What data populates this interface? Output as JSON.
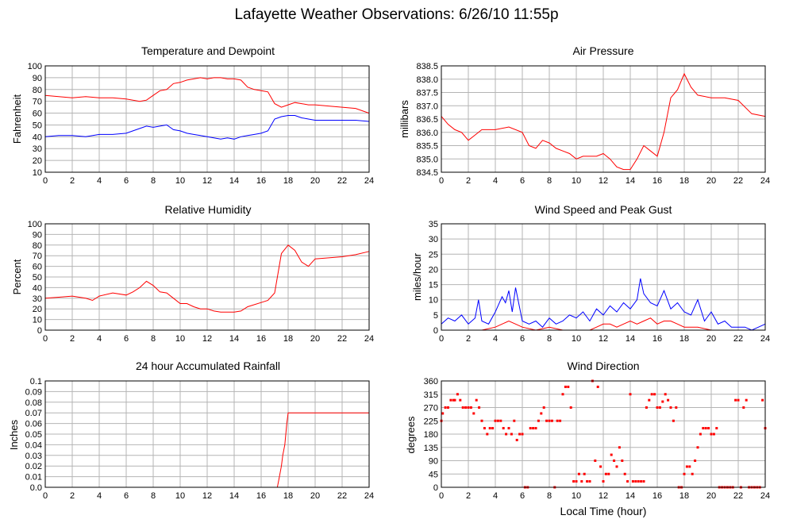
{
  "page_title": "Lafayette Weather Observations: 6/26/10 11:55p",
  "xaxis_label": "Local Time (hour)",
  "chart_data": [
    {
      "id": "temp",
      "type": "line",
      "title": "Temperature and Dewpoint",
      "ylabel": "Fahrenheit",
      "xlabel": "",
      "xlim": [
        0,
        24
      ],
      "ylim": [
        10,
        100
      ],
      "xticks": [
        "0",
        "2",
        "4",
        "6",
        "8",
        "10",
        "12",
        "14",
        "16",
        "18",
        "20",
        "22",
        "24"
      ],
      "yticks": [
        "10",
        "20",
        "30",
        "40",
        "50",
        "60",
        "70",
        "80",
        "90",
        "100"
      ],
      "grid": true,
      "series": [
        {
          "color": "#ff0000",
          "x": [
            0,
            1,
            2,
            3,
            4,
            5,
            6,
            7,
            7.5,
            8,
            8.5,
            9,
            9.5,
            10,
            10.5,
            11,
            11.5,
            12,
            12.5,
            13,
            13.5,
            14,
            14.5,
            15,
            15.5,
            16,
            16.5,
            17,
            17.5,
            18,
            18.5,
            19,
            19.5,
            20,
            21,
            22,
            23,
            24
          ],
          "y": [
            75,
            74,
            73,
            74,
            73,
            73,
            72,
            70,
            71,
            75,
            79,
            80,
            85,
            86,
            88,
            89,
            90,
            89,
            90,
            90,
            89,
            89,
            88,
            82,
            80,
            79,
            78,
            68,
            65,
            67,
            69,
            68,
            67,
            67,
            66,
            65,
            64,
            60
          ]
        },
        {
          "color": "#0000ff",
          "x": [
            0,
            1,
            2,
            3,
            4,
            5,
            6,
            7,
            7.5,
            8,
            8.5,
            9,
            9.5,
            10,
            10.5,
            11,
            11.5,
            12,
            12.5,
            13,
            13.5,
            14,
            14.5,
            15,
            15.5,
            16,
            16.5,
            17,
            17.5,
            18,
            18.5,
            19,
            19.5,
            20,
            21,
            22,
            23,
            24
          ],
          "y": [
            40,
            41,
            41,
            40,
            42,
            42,
            43,
            47,
            49,
            48,
            49,
            50,
            46,
            45,
            43,
            42,
            41,
            40,
            39,
            38,
            39,
            38,
            40,
            41,
            42,
            43,
            45,
            55,
            57,
            58,
            58,
            56,
            55,
            54,
            54,
            54,
            54,
            53
          ]
        }
      ]
    },
    {
      "id": "pressure",
      "type": "line",
      "title": "Air Pressure",
      "ylabel": "millibars",
      "xlabel": "",
      "xlim": [
        0,
        24
      ],
      "ylim": [
        834.5,
        838.5
      ],
      "xticks": [
        "0",
        "2",
        "4",
        "6",
        "8",
        "10",
        "12",
        "14",
        "16",
        "18",
        "20",
        "22",
        "24"
      ],
      "yticks": [
        "834.5",
        "835.0",
        "835.5",
        "836.0",
        "836.5",
        "837.0",
        "837.5",
        "838.0",
        "838.5"
      ],
      "grid": true,
      "series": [
        {
          "color": "#ff0000",
          "x": [
            0,
            0.5,
            1,
            1.5,
            2,
            2.5,
            3,
            4,
            5,
            6,
            6.5,
            7,
            7.5,
            8,
            8.5,
            9,
            9.5,
            10,
            10.5,
            11,
            11.5,
            12,
            12.5,
            13,
            13.5,
            14,
            14.5,
            15,
            15.5,
            16,
            16.5,
            17,
            17.5,
            18,
            18.5,
            19,
            20,
            21,
            22,
            23,
            24
          ],
          "y": [
            836.6,
            836.3,
            836.1,
            836.0,
            835.7,
            835.9,
            836.1,
            836.1,
            836.2,
            836.0,
            835.5,
            835.4,
            835.7,
            835.6,
            835.4,
            835.3,
            835.2,
            835.0,
            835.1,
            835.1,
            835.1,
            835.2,
            835.0,
            834.7,
            834.6,
            834.6,
            835.0,
            835.5,
            835.3,
            835.1,
            836.0,
            837.3,
            837.6,
            838.2,
            837.7,
            837.4,
            837.3,
            837.3,
            837.2,
            836.7,
            836.6
          ]
        }
      ]
    },
    {
      "id": "humidity",
      "type": "line",
      "title": "Relative Humidity",
      "ylabel": "Percent",
      "xlabel": "",
      "xlim": [
        0,
        24
      ],
      "ylim": [
        0,
        100
      ],
      "xticks": [
        "0",
        "2",
        "4",
        "6",
        "8",
        "10",
        "12",
        "14",
        "16",
        "18",
        "20",
        "22",
        "24"
      ],
      "yticks": [
        "0",
        "10",
        "20",
        "30",
        "40",
        "50",
        "60",
        "70",
        "80",
        "90",
        "100"
      ],
      "grid": true,
      "series": [
        {
          "color": "#ff0000",
          "x": [
            0,
            1,
            2,
            3,
            3.5,
            4,
            5,
            6,
            6.5,
            7,
            7.5,
            8,
            8.5,
            9,
            9.5,
            10,
            10.5,
            11,
            11.5,
            12,
            12.5,
            13,
            13.5,
            14,
            14.5,
            15,
            16,
            16.5,
            17,
            17.5,
            18,
            18.5,
            19,
            19.5,
            20,
            21,
            22,
            23,
            24
          ],
          "y": [
            30,
            31,
            32,
            30,
            28,
            32,
            35,
            33,
            36,
            40,
            46,
            42,
            36,
            35,
            30,
            25,
            25,
            22,
            20,
            20,
            18,
            17,
            17,
            17,
            18,
            22,
            26,
            28,
            35,
            72,
            80,
            75,
            64,
            60,
            67,
            68,
            69,
            71,
            74
          ]
        }
      ]
    },
    {
      "id": "wind",
      "type": "line",
      "title": "Wind Speed and Peak Gust",
      "ylabel": "miles/hour",
      "xlabel": "",
      "xlim": [
        0,
        24
      ],
      "ylim": [
        0,
        35
      ],
      "xticks": [
        "0",
        "2",
        "4",
        "6",
        "8",
        "10",
        "12",
        "14",
        "16",
        "18",
        "20",
        "22",
        "24"
      ],
      "yticks": [
        "0",
        "5",
        "10",
        "15",
        "20",
        "25",
        "30",
        "35"
      ],
      "grid": true,
      "series": [
        {
          "color": "#ff0000",
          "x": [
            0,
            1,
            2,
            3,
            4,
            4.5,
            5,
            5.5,
            6,
            7,
            8,
            9,
            10,
            11,
            11.5,
            12,
            12.5,
            13,
            13.5,
            14,
            14.5,
            15,
            15.5,
            16,
            16.5,
            17,
            17.5,
            18,
            19,
            20,
            21,
            22,
            23,
            24
          ],
          "y": [
            0,
            0,
            0,
            0,
            1,
            2,
            3,
            2,
            1,
            0,
            1,
            0,
            0,
            0,
            1,
            2,
            2,
            1,
            2,
            3,
            2,
            3,
            4,
            2,
            3,
            3,
            2,
            1,
            1,
            0,
            0,
            0,
            0,
            0
          ]
        },
        {
          "color": "#0000ff",
          "x": [
            0,
            0.5,
            1,
            1.5,
            2,
            2.5,
            2.75,
            3,
            3.5,
            4,
            4.5,
            4.75,
            5,
            5.25,
            5.5,
            6,
            6.5,
            7,
            7.5,
            8,
            8.5,
            9,
            9.5,
            10,
            10.5,
            11,
            11.5,
            12,
            12.5,
            13,
            13.5,
            14,
            14.5,
            14.75,
            15,
            15.5,
            16,
            16.5,
            17,
            17.5,
            18,
            18.5,
            19,
            19.5,
            20,
            20.5,
            21,
            21.5,
            22,
            22.5,
            23,
            23.5,
            24
          ],
          "y": [
            2,
            4,
            3,
            5,
            2,
            4,
            10,
            3,
            2,
            6,
            11,
            9,
            13,
            6,
            14,
            3,
            2,
            3,
            1,
            4,
            2,
            3,
            5,
            4,
            6,
            3,
            7,
            5,
            8,
            6,
            9,
            7,
            10,
            17,
            12,
            9,
            8,
            13,
            7,
            9,
            6,
            5,
            10,
            3,
            6,
            2,
            3,
            1,
            1,
            1,
            0,
            1,
            2
          ]
        }
      ]
    },
    {
      "id": "rain",
      "type": "line",
      "title": "24 hour Accumulated Rainfall",
      "ylabel": "Inches",
      "xlabel": "",
      "xlim": [
        0,
        24
      ],
      "ylim": [
        0,
        0.1
      ],
      "xticks": [
        "0",
        "2",
        "4",
        "6",
        "8",
        "10",
        "12",
        "14",
        "16",
        "18",
        "20",
        "22",
        "24"
      ],
      "yticks": [
        "0.0",
        "0.01",
        "0.02",
        "0.03",
        "0.04",
        "0.05",
        "0.06",
        "0.07",
        "0.08",
        "0.09",
        "0.1"
      ],
      "grid": true,
      "series": [
        {
          "color": "#ff0000",
          "x": [
            0,
            17.2,
            17.35,
            17.5,
            17.6,
            17.75,
            17.9,
            18,
            24
          ],
          "y": [
            0,
            0,
            0.01,
            0.02,
            0.03,
            0.04,
            0.06,
            0.07,
            0.07
          ]
        }
      ]
    },
    {
      "id": "winddir",
      "type": "scatter",
      "title": "Wind Direction",
      "ylabel": "degrees",
      "xlabel": "Local Time (hour)",
      "xlim": [
        0,
        24
      ],
      "ylim": [
        0,
        360
      ],
      "xticks": [
        "0",
        "2",
        "4",
        "6",
        "8",
        "10",
        "12",
        "14",
        "16",
        "18",
        "20",
        "22",
        "24"
      ],
      "yticks": [
        "0",
        "45",
        "90",
        "135",
        "180",
        "225",
        "270",
        "315",
        "360"
      ],
      "grid": true,
      "series": [
        {
          "color": "#ff0000",
          "x": [
            0,
            0.1,
            0.3,
            0.5,
            0.7,
            0.9,
            1.0,
            1.2,
            1.4,
            1.6,
            1.8,
            2.0,
            2.2,
            2.4,
            2.6,
            2.8,
            3.0,
            3.2,
            3.4,
            3.6,
            3.8,
            4.0,
            4.2,
            4.4,
            4.6,
            4.8,
            5.0,
            5.2,
            5.4,
            5.6,
            5.8,
            6.0,
            6.2,
            6.4,
            6.6,
            6.8,
            7.0,
            7.2,
            7.4,
            7.6,
            7.8,
            8.0,
            8.2,
            8.4,
            8.6,
            8.8,
            9.0,
            9.2,
            9.4,
            9.6,
            9.8,
            10.0,
            10.2,
            10.4,
            10.6,
            10.8,
            11.0,
            11.2,
            11.4,
            11.6,
            11.8,
            12.0,
            12.2,
            12.4,
            12.6,
            12.8,
            13.0,
            13.2,
            13.4,
            13.6,
            13.8,
            14.0,
            14.2,
            14.4,
            14.6,
            14.8,
            15.0,
            15.2,
            15.4,
            15.6,
            15.8,
            16.0,
            16.2,
            16.4,
            16.6,
            16.8,
            17.0,
            17.2,
            17.4,
            17.6,
            17.8,
            18.0,
            18.2,
            18.4,
            18.6,
            18.8,
            19.0,
            19.2,
            19.4,
            19.6,
            19.8,
            20.0,
            20.2,
            20.4,
            20.6,
            20.8,
            21.0,
            21.2,
            21.4,
            21.6,
            21.8,
            22.0,
            22.2,
            22.4,
            22.6,
            22.8,
            23.0,
            23.2,
            23.4,
            23.6,
            23.8,
            24.0
          ],
          "y": [
            225,
            250,
            270,
            270,
            295,
            295,
            295,
            315,
            295,
            270,
            270,
            270,
            270,
            250,
            295,
            270,
            225,
            200,
            180,
            200,
            200,
            225,
            225,
            225,
            200,
            180,
            200,
            180,
            225,
            160,
            180,
            180,
            0,
            0,
            200,
            200,
            200,
            225,
            250,
            270,
            225,
            225,
            225,
            0,
            225,
            225,
            315,
            340,
            340,
            270,
            20,
            20,
            45,
            20,
            45,
            20,
            20,
            360,
            90,
            340,
            70,
            20,
            45,
            45,
            110,
            90,
            70,
            135,
            90,
            45,
            20,
            315,
            20,
            20,
            20,
            20,
            20,
            270,
            295,
            315,
            315,
            270,
            270,
            290,
            315,
            295,
            270,
            225,
            270,
            0,
            0,
            45,
            70,
            70,
            45,
            90,
            135,
            180,
            200,
            200,
            200,
            180,
            180,
            200,
            0,
            0,
            0,
            0,
            0,
            0,
            295,
            295,
            0,
            270,
            295,
            0,
            0,
            0,
            0,
            0,
            295,
            200
          ]
        }
      ]
    }
  ]
}
